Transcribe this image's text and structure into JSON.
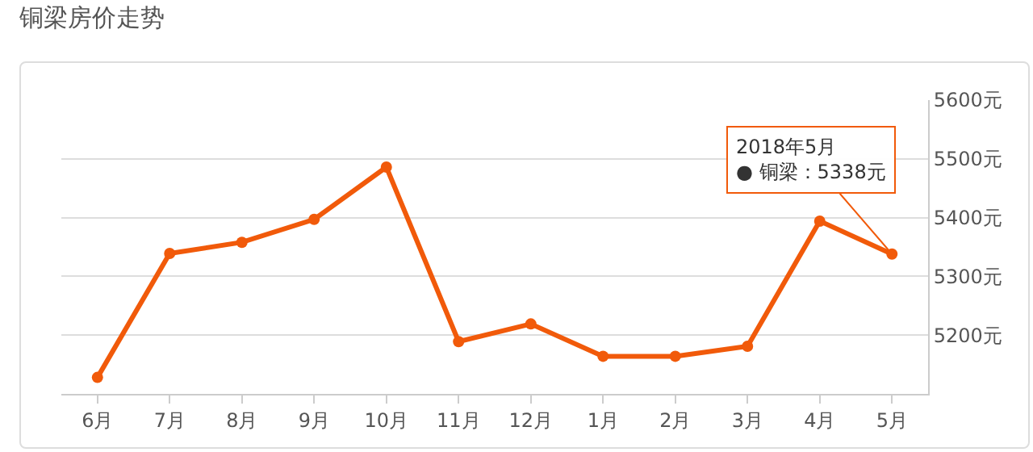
{
  "chart_data": {
    "type": "line",
    "title": "铜梁房价走势",
    "categories": [
      "6月",
      "7月",
      "8月",
      "9月",
      "10月",
      "11月",
      "12月",
      "1月",
      "2月",
      "3月",
      "4月",
      "5月"
    ],
    "series": [
      {
        "color": "#f15a0a",
        "values": [
          5128,
          5339,
          5358,
          5397,
          5486,
          5189,
          5219,
          5164,
          5164,
          5181,
          5394,
          5338
        ]
      }
    ],
    "ylim": [
      5100,
      5600
    ],
    "yticks": [
      {
        "value": 5100,
        "label": null
      },
      {
        "value": 5200,
        "label": "5200元"
      },
      {
        "value": 5300,
        "label": "5300元"
      },
      {
        "value": 5400,
        "label": "5400元"
      },
      {
        "value": 5500,
        "label": "5500元"
      },
      {
        "value": 5600,
        "label": "5600元"
      }
    ],
    "grid": "y",
    "legend": false,
    "marker": "circle",
    "line_style": "solid",
    "annotations": [
      {
        "text": "2018年5月\n● 铜梁：5338元",
        "x": "5月",
        "y": 5338
      }
    ]
  }
}
